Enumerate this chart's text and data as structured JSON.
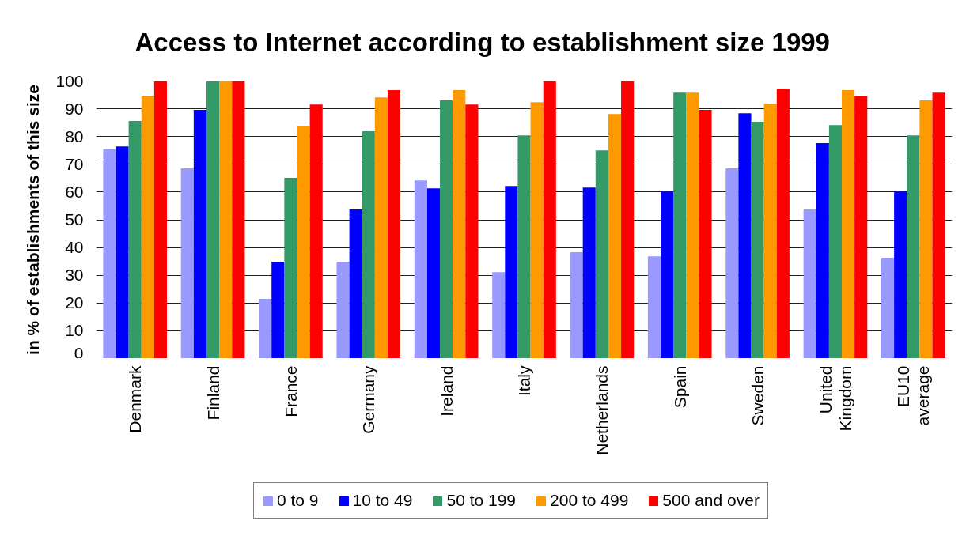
{
  "chart_data": {
    "type": "bar",
    "title": "Access to Internet according to establishment size 1999",
    "ylabel": "in % of establishments of this size",
    "categories": [
      "Denmark",
      "Finland",
      "France",
      "Germany",
      "Ireland",
      "Italy",
      "Netherlands",
      "Spain",
      "Sweden",
      "United Kingdom",
      "EU10 average"
    ],
    "series": [
      {
        "name": "0 to 9",
        "color": "#9999ff",
        "values": [
          75.5,
          68.5,
          21.5,
          34.9,
          64.2,
          31.1,
          38.3,
          36.8,
          68.5,
          53.7,
          36.3
        ]
      },
      {
        "name": "10 to 49",
        "color": "#0000ff",
        "values": [
          76.4,
          89.6,
          34.9,
          53.7,
          61.3,
          62.2,
          61.6,
          60.2,
          88.4,
          77.6,
          60.2
        ]
      },
      {
        "name": "50 to 199",
        "color": "#339966",
        "values": [
          85.6,
          100,
          65.1,
          81.9,
          93.0,
          80.4,
          75.0,
          95.8,
          85.3,
          84.1,
          80.4
        ]
      },
      {
        "name": "200 to 499",
        "color": "#ff9900",
        "values": [
          94.7,
          100,
          83.9,
          94.1,
          96.7,
          92.4,
          88.1,
          95.8,
          91.8,
          96.7,
          93.0
        ]
      },
      {
        "name": "500 and over",
        "color": "#ff0000",
        "values": [
          100,
          100,
          91.5,
          96.7,
          91.5,
          100,
          100,
          89.6,
          97.2,
          94.7,
          95.8
        ]
      }
    ],
    "ylim": [
      0,
      100
    ],
    "yticks": [
      0,
      10,
      20,
      30,
      40,
      50,
      60,
      70,
      80,
      90,
      100
    ],
    "grid": "y",
    "legend": "bottom"
  }
}
